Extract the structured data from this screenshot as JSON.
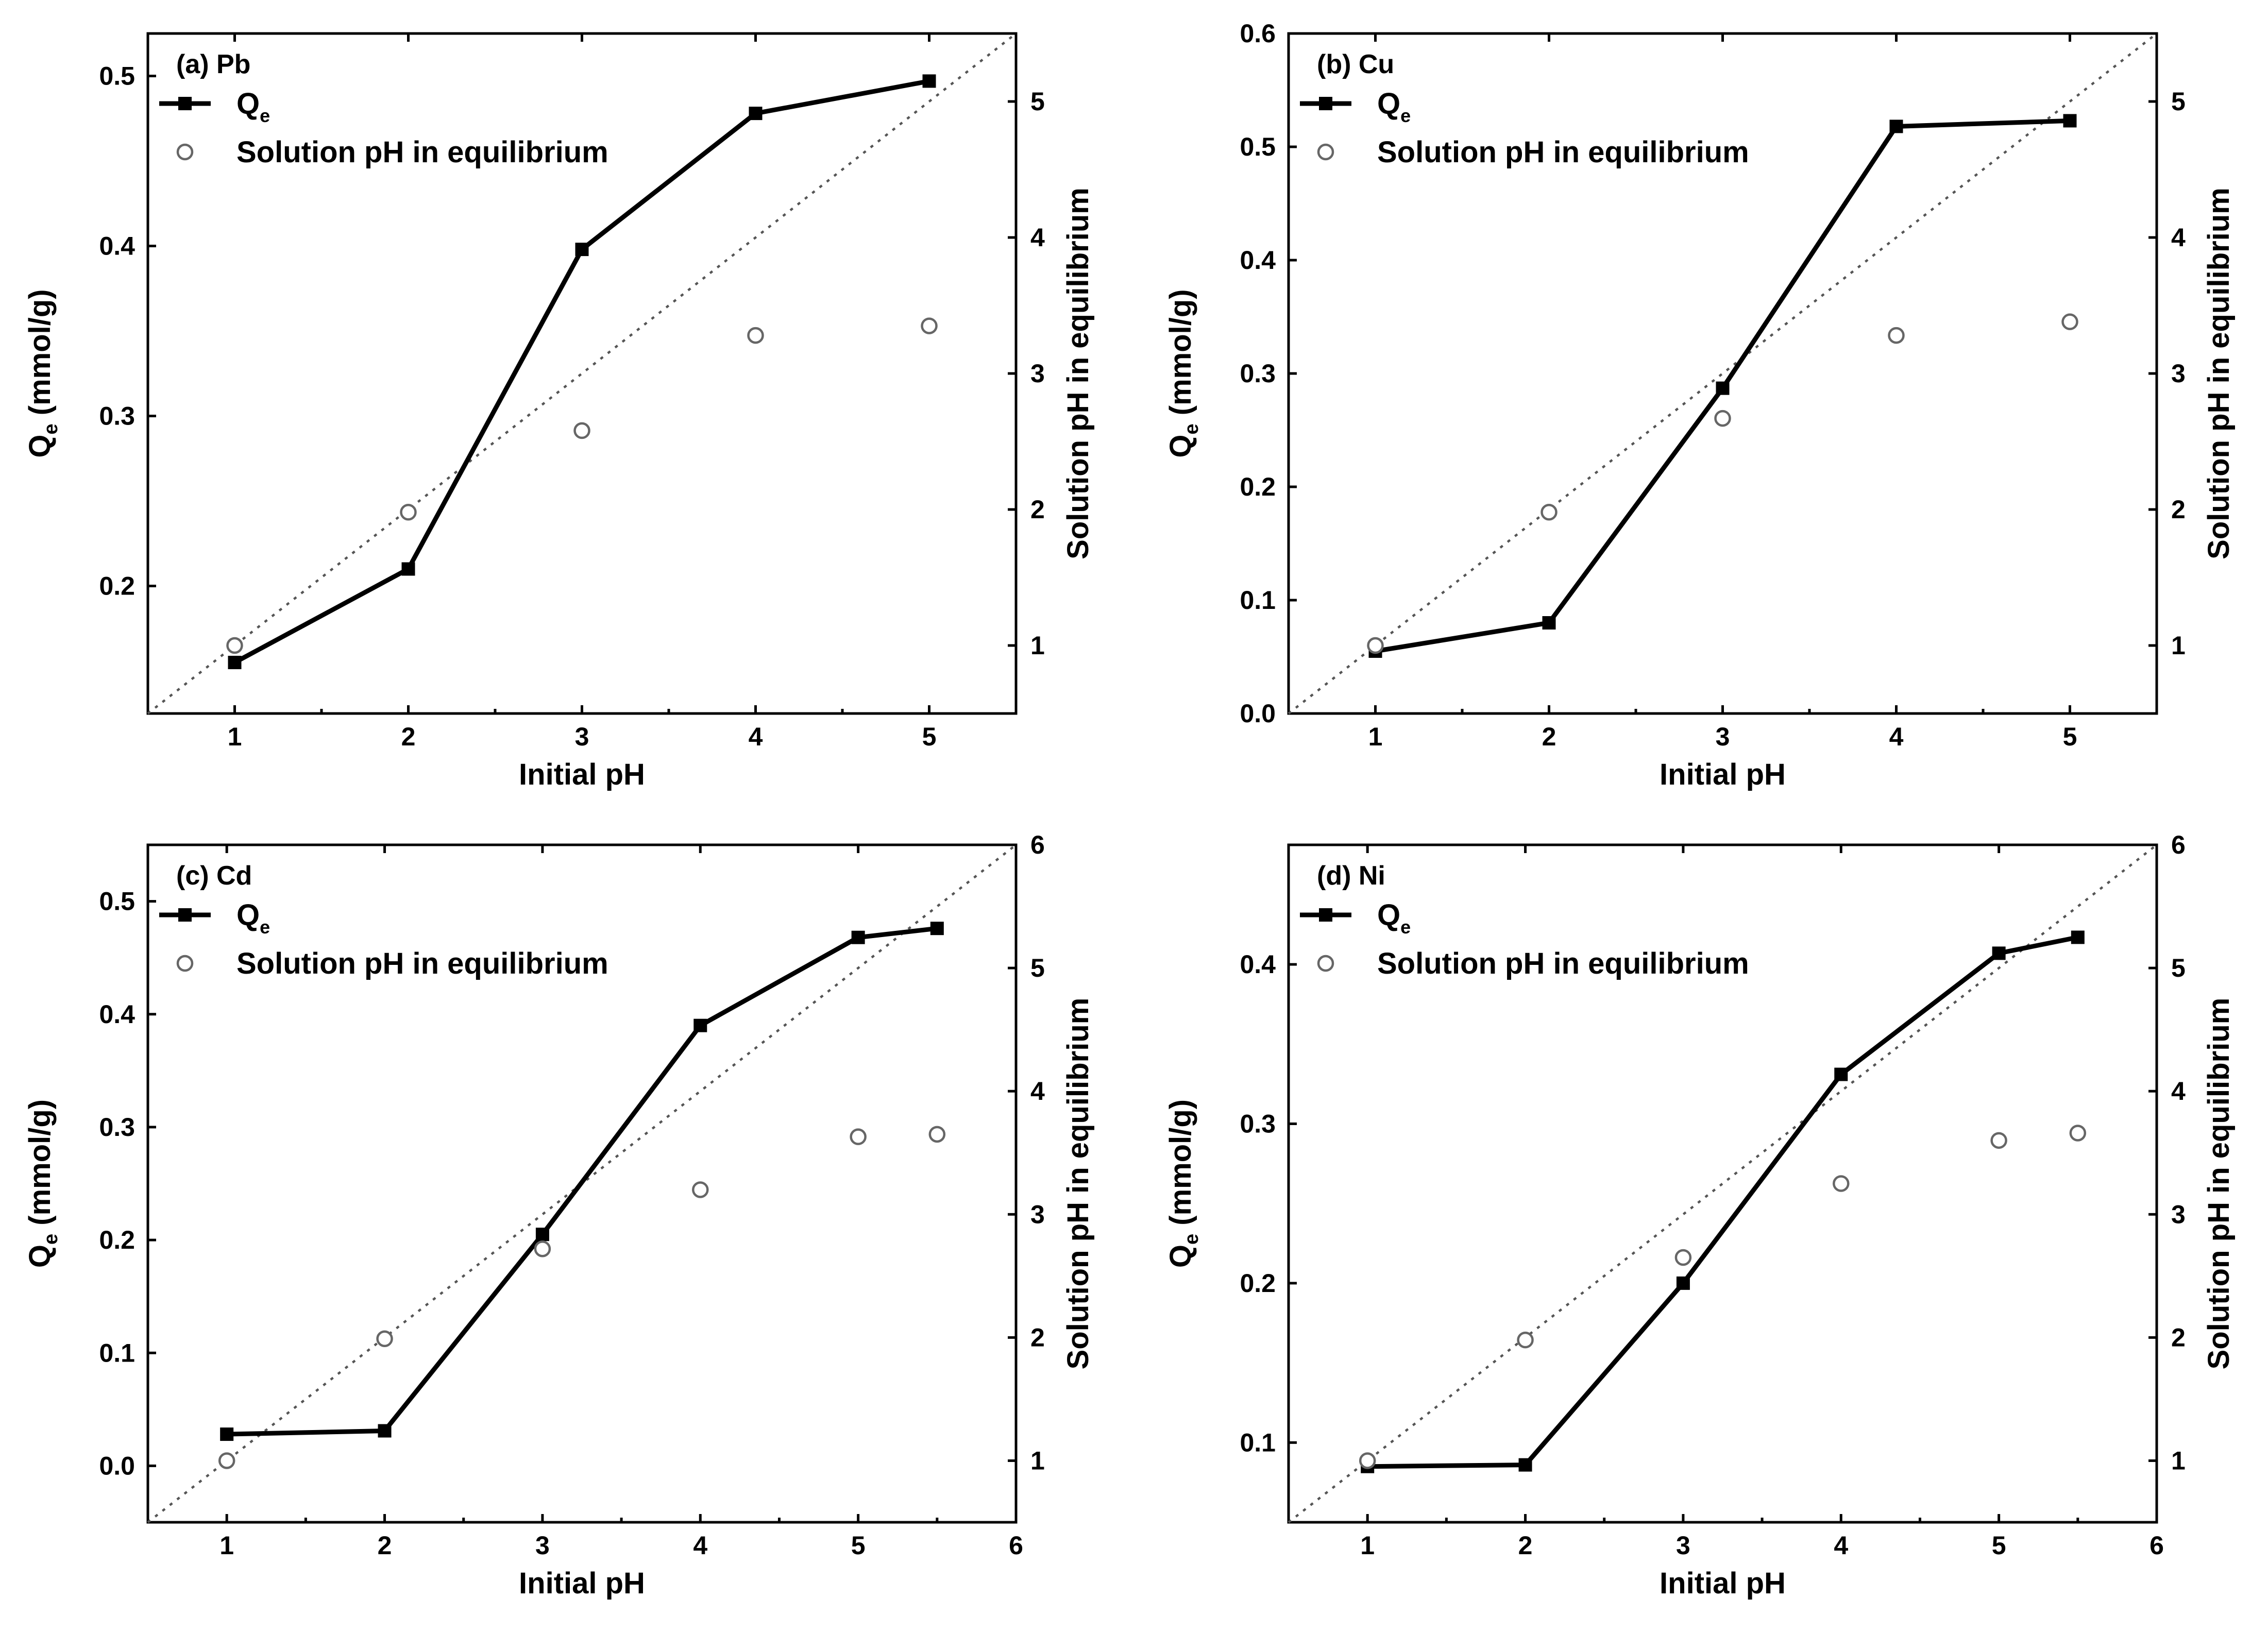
{
  "chart_data": [
    {
      "type": "line",
      "title": "(a) Pb",
      "xlabel": "Initial pH",
      "ylabel": "Q",
      "ylabel_sub": "e",
      "ylabel_unit": " (mmol/g)",
      "y2label": "Solution pH in equilibrium",
      "xlim": [
        0.5,
        5.5
      ],
      "ylim": [
        0.125,
        0.525
      ],
      "y2lim": [
        0.5,
        5.5
      ],
      "xticks": [
        1,
        2,
        3,
        4,
        5
      ],
      "yticks": [
        0.2,
        0.3,
        0.4,
        0.5
      ],
      "y2ticks": [
        1,
        2,
        3,
        4,
        5
      ],
      "xtick_labels": [
        "1",
        "2",
        "3",
        "4",
        "5"
      ],
      "ytick_labels": [
        "0.2",
        "0.3",
        "0.4",
        "0.5"
      ],
      "y2tick_labels": [
        "1",
        "2",
        "3",
        "4",
        "5"
      ],
      "legend": [
        "Q",
        "Solution pH in equilibrium"
      ],
      "legend_sub": "e",
      "legend_position": "top-left",
      "series": [
        {
          "name": "Qe",
          "axis": "left",
          "style": "line-square",
          "x": [
            1,
            2,
            3,
            4,
            5
          ],
          "y": [
            0.155,
            0.21,
            0.398,
            0.478,
            0.497
          ]
        },
        {
          "name": "Solution pH in equilibrium",
          "axis": "right",
          "style": "open-circle",
          "x": [
            1,
            2,
            3,
            4,
            5
          ],
          "y": [
            1.0,
            1.98,
            2.58,
            3.28,
            3.35
          ]
        },
        {
          "name": "reference",
          "axis": "right",
          "style": "dotted",
          "x": [
            0.5,
            5.5
          ],
          "y": [
            0.5,
            5.5
          ]
        }
      ]
    },
    {
      "type": "line",
      "title": "(b) Cu",
      "xlabel": "Initial pH",
      "ylabel": "Q",
      "ylabel_sub": "e",
      "ylabel_unit": " (mmol/g)",
      "y2label": "Solution pH in equilibrium",
      "xlim": [
        0.5,
        5.5
      ],
      "ylim": [
        0,
        0.6
      ],
      "y2lim": [
        0.5,
        5.5
      ],
      "xticks": [
        1,
        2,
        3,
        4,
        5
      ],
      "yticks": [
        0.0,
        0.1,
        0.2,
        0.3,
        0.4,
        0.5,
        0.6
      ],
      "y2ticks": [
        1,
        2,
        3,
        4,
        5
      ],
      "xtick_labels": [
        "1",
        "2",
        "3",
        "4",
        "5"
      ],
      "ytick_labels": [
        "0.0",
        "0.1",
        "0.2",
        "0.3",
        "0.4",
        "0.5",
        "0.6"
      ],
      "y2tick_labels": [
        "1",
        "2",
        "3",
        "4",
        "5"
      ],
      "legend": [
        "Q",
        "Solution pH in equilibrium"
      ],
      "legend_sub": "e",
      "legend_position": "top-left",
      "series": [
        {
          "name": "Qe",
          "axis": "left",
          "style": "line-square",
          "x": [
            1,
            2,
            3,
            4,
            5
          ],
          "y": [
            0.055,
            0.08,
            0.287,
            0.518,
            0.523
          ]
        },
        {
          "name": "Solution pH in equilibrium",
          "axis": "right",
          "style": "open-circle",
          "x": [
            1,
            2,
            3,
            4,
            5
          ],
          "y": [
            1.0,
            1.98,
            2.67,
            3.28,
            3.38
          ]
        },
        {
          "name": "reference",
          "axis": "right",
          "style": "dotted",
          "x": [
            0.5,
            5.5
          ],
          "y": [
            0.5,
            5.5
          ]
        }
      ]
    },
    {
      "type": "line",
      "title": "(c) Cd",
      "xlabel": "Initial pH",
      "ylabel": "Q",
      "ylabel_sub": "e",
      "ylabel_unit": " (mmol/g)",
      "y2label": "Solution pH in equilibrium",
      "xlim": [
        0.5,
        6
      ],
      "ylim": [
        -0.05,
        0.55
      ],
      "y2lim": [
        0.5,
        6
      ],
      "xticks": [
        1,
        2,
        3,
        4,
        5,
        6
      ],
      "yticks": [
        0.0,
        0.1,
        0.2,
        0.3,
        0.4,
        0.5
      ],
      "y2ticks": [
        1,
        2,
        3,
        4,
        5,
        6
      ],
      "xtick_labels": [
        "1",
        "2",
        "3",
        "4",
        "5",
        "6"
      ],
      "ytick_labels": [
        "0.0",
        "0.1",
        "0.2",
        "0.3",
        "0.4",
        "0.5"
      ],
      "y2tick_labels": [
        "1",
        "2",
        "3",
        "4",
        "5",
        "6"
      ],
      "legend": [
        "Q",
        "Solution pH in equilibrium"
      ],
      "legend_sub": "e",
      "legend_position": "top-left",
      "series": [
        {
          "name": "Qe",
          "axis": "left",
          "style": "line-square",
          "x": [
            1,
            2,
            3,
            4,
            5,
            5.5
          ],
          "y": [
            0.028,
            0.031,
            0.205,
            0.39,
            0.468,
            0.476
          ]
        },
        {
          "name": "Solution pH in equilibrium",
          "axis": "right",
          "style": "open-circle",
          "x": [
            1,
            2,
            3,
            4,
            5,
            5.5
          ],
          "y": [
            1.0,
            1.99,
            2.72,
            3.2,
            3.63,
            3.65
          ]
        },
        {
          "name": "reference",
          "axis": "right",
          "style": "dotted",
          "x": [
            0.5,
            6
          ],
          "y": [
            0.5,
            6
          ]
        }
      ]
    },
    {
      "type": "line",
      "title": "(d) Ni",
      "xlabel": "Initial pH",
      "ylabel": "Q",
      "ylabel_sub": "e",
      "ylabel_unit": " (mmol/g)",
      "y2label": "Solution pH in equilibrium",
      "xlim": [
        0.5,
        6
      ],
      "ylim": [
        0.05,
        0.475
      ],
      "y2lim": [
        0.5,
        6
      ],
      "xticks": [
        1,
        2,
        3,
        4,
        5,
        6
      ],
      "yticks": [
        0.1,
        0.2,
        0.3,
        0.4
      ],
      "y2ticks": [
        1,
        2,
        3,
        4,
        5,
        6
      ],
      "xtick_labels": [
        "1",
        "2",
        "3",
        "4",
        "5",
        "6"
      ],
      "ytick_labels": [
        "0.1",
        "0.2",
        "0.3",
        "0.4"
      ],
      "y2tick_labels": [
        "1",
        "2",
        "3",
        "4",
        "5",
        "6"
      ],
      "legend": [
        "Q",
        "Solution pH in equilibrium"
      ],
      "legend_sub": "e",
      "legend_position": "top-left",
      "series": [
        {
          "name": "Qe",
          "axis": "left",
          "style": "line-square",
          "x": [
            1,
            2,
            3,
            4,
            5,
            5.5
          ],
          "y": [
            0.085,
            0.086,
            0.2,
            0.331,
            0.407,
            0.417
          ]
        },
        {
          "name": "Solution pH in equilibrium",
          "axis": "right",
          "style": "open-circle",
          "x": [
            1,
            2,
            3,
            4,
            5,
            5.5
          ],
          "y": [
            1.0,
            1.98,
            2.65,
            3.25,
            3.6,
            3.66
          ]
        },
        {
          "name": "reference",
          "axis": "right",
          "style": "dotted",
          "x": [
            0.5,
            6
          ],
          "y": [
            0.5,
            6
          ]
        }
      ]
    }
  ]
}
